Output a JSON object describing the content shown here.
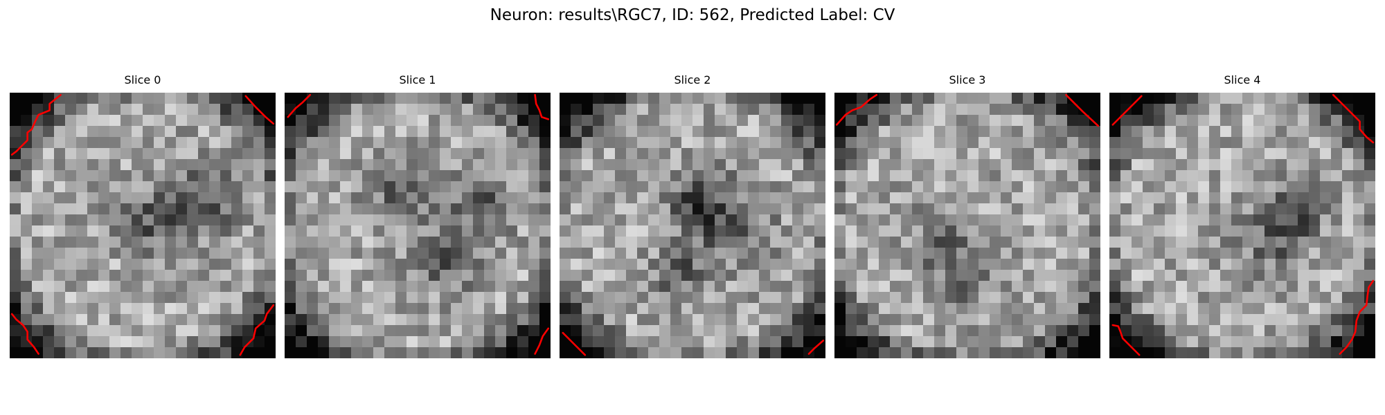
{
  "figure": {
    "title": "Neuron: results\\RGC7, ID: 562, Predicted Label: CV",
    "colormap": "gray",
    "contour_color": "#ff0000",
    "grid_size": 24,
    "slices": [
      {
        "title": "Slice 0",
        "seed": 1,
        "dark_centers": [
          [
            9.5,
            17.0,
            2.6
          ],
          [
            11.0,
            12.0,
            2.0
          ]
        ],
        "contours": [
          [
            [
              4.6,
              0.2
            ],
            [
              3.6,
              1.0
            ],
            [
              3.6,
              1.6
            ],
            [
              2.6,
              2.0
            ],
            [
              2.3,
              2.6
            ],
            [
              2.0,
              3.3
            ],
            [
              1.6,
              3.6
            ],
            [
              1.6,
              4.3
            ],
            [
              1.0,
              4.9
            ],
            [
              0.6,
              5.3
            ],
            [
              0.2,
              5.6
            ]
          ],
          [
            [
              21.3,
              0.3
            ],
            [
              22.2,
              1.3
            ],
            [
              23.1,
              2.2
            ],
            [
              23.8,
              2.8
            ]
          ],
          [
            [
              0.2,
              20.0
            ],
            [
              0.6,
              20.5
            ],
            [
              1.2,
              21.0
            ],
            [
              1.6,
              21.6
            ],
            [
              1.6,
              22.3
            ],
            [
              2.2,
              23.0
            ],
            [
              2.6,
              23.6
            ]
          ],
          [
            [
              23.8,
              19.2
            ],
            [
              23.2,
              20.0
            ],
            [
              23.0,
              20.6
            ],
            [
              22.2,
              21.3
            ],
            [
              22.0,
              22.2
            ],
            [
              21.2,
              23.0
            ],
            [
              20.8,
              23.7
            ]
          ]
        ]
      },
      {
        "title": "Slice 1",
        "seed": 2,
        "dark_centers": [
          [
            8.5,
            10.5,
            2.5
          ],
          [
            9.5,
            17.5,
            2.2
          ],
          [
            15.0,
            14.0,
            2.0
          ]
        ],
        "contours": [
          [
            [
              0.3,
              2.2
            ],
            [
              1.0,
              1.4
            ],
            [
              1.6,
              0.9
            ],
            [
              2.3,
              0.2
            ]
          ],
          [
            [
              22.6,
              0.2
            ],
            [
              22.7,
              1.0
            ],
            [
              23.0,
              1.6
            ],
            [
              23.2,
              2.2
            ],
            [
              23.8,
              2.4
            ]
          ],
          [
            [
              23.8,
              21.3
            ],
            [
              23.3,
              22.0
            ],
            [
              23.0,
              22.8
            ],
            [
              22.6,
              23.6
            ]
          ]
        ]
      },
      {
        "title": "Slice 2",
        "seed": 3,
        "dark_centers": [
          [
            11.5,
            14.5,
            3.0
          ],
          [
            9.0,
            12.0,
            2.0
          ],
          [
            16.0,
            10.0,
            1.6
          ]
        ],
        "contours": [
          [
            [
              0.3,
              21.7
            ],
            [
              1.2,
              22.6
            ],
            [
              2.3,
              23.7
            ]
          ],
          [
            [
              23.8,
              22.4
            ],
            [
              23.0,
              23.1
            ],
            [
              22.5,
              23.6
            ]
          ]
        ]
      },
      {
        "title": "Slice 3",
        "seed": 4,
        "dark_centers": [
          [
            16.0,
            11.0,
            2.4
          ],
          [
            12.0,
            9.0,
            1.6
          ]
        ],
        "contours": [
          [
            [
              0.2,
              2.9
            ],
            [
              1.0,
              2.0
            ],
            [
              1.6,
              1.6
            ],
            [
              2.4,
              1.3
            ],
            [
              3.2,
              0.6
            ],
            [
              3.8,
              0.2
            ]
          ],
          [
            [
              20.9,
              0.2
            ],
            [
              22.4,
              1.7
            ],
            [
              23.8,
              3.0
            ]
          ]
        ]
      },
      {
        "title": "Slice 4",
        "seed": 5,
        "dark_centers": [
          [
            12.5,
            14.0,
            2.4
          ],
          [
            10.0,
            16.5,
            1.8
          ]
        ],
        "contours": [
          [
            [
              0.3,
              2.9
            ],
            [
              1.6,
              1.6
            ],
            [
              2.9,
              0.3
            ]
          ],
          [
            [
              20.2,
              0.2
            ],
            [
              21.0,
              1.0
            ],
            [
              22.0,
              2.0
            ],
            [
              22.6,
              2.6
            ],
            [
              22.6,
              3.3
            ],
            [
              23.2,
              4.0
            ],
            [
              23.8,
              4.5
            ]
          ],
          [
            [
              0.3,
              21.0
            ],
            [
              0.8,
              21.1
            ],
            [
              1.0,
              21.6
            ],
            [
              1.2,
              22.2
            ],
            [
              1.8,
              22.8
            ],
            [
              2.4,
              23.4
            ],
            [
              2.7,
              23.7
            ]
          ],
          [
            [
              23.8,
              17.0
            ],
            [
              23.4,
              17.6
            ],
            [
              23.3,
              18.3
            ],
            [
              23.2,
              19.2
            ],
            [
              22.6,
              19.8
            ],
            [
              22.3,
              20.6
            ],
            [
              22.2,
              21.6
            ],
            [
              21.9,
              22.3
            ],
            [
              21.4,
              23.0
            ],
            [
              20.8,
              23.6
            ]
          ]
        ]
      }
    ]
  }
}
